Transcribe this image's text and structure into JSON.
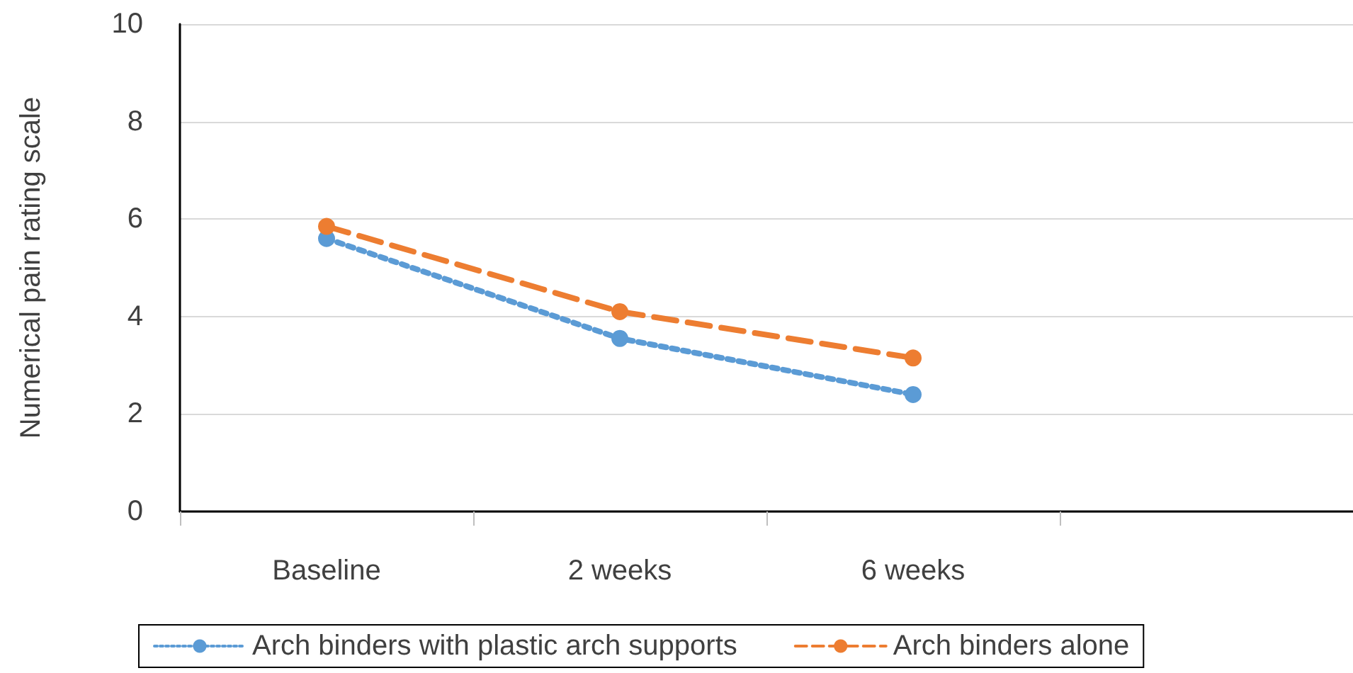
{
  "chart_data": {
    "type": "line",
    "ylabel": "Numerical pain rating scale",
    "categories": [
      "Baseline",
      "2 weeks",
      "6 weeks",
      null
    ],
    "series": [
      {
        "name": "Arch binders with plastic arch supports",
        "color": "#5b9bd5",
        "values": [
          5.6,
          3.55,
          2.4,
          null
        ],
        "line_style": "dotted"
      },
      {
        "name": "Arch binders alone",
        "color": "#ed7d31",
        "values": [
          5.85,
          4.1,
          3.15,
          null
        ],
        "line_style": "dashed"
      }
    ],
    "ylim": [
      0,
      10
    ],
    "yticks": [
      0,
      2,
      4,
      6,
      8,
      10
    ],
    "grid": "y",
    "legend": "bottom",
    "marker": "circle"
  }
}
